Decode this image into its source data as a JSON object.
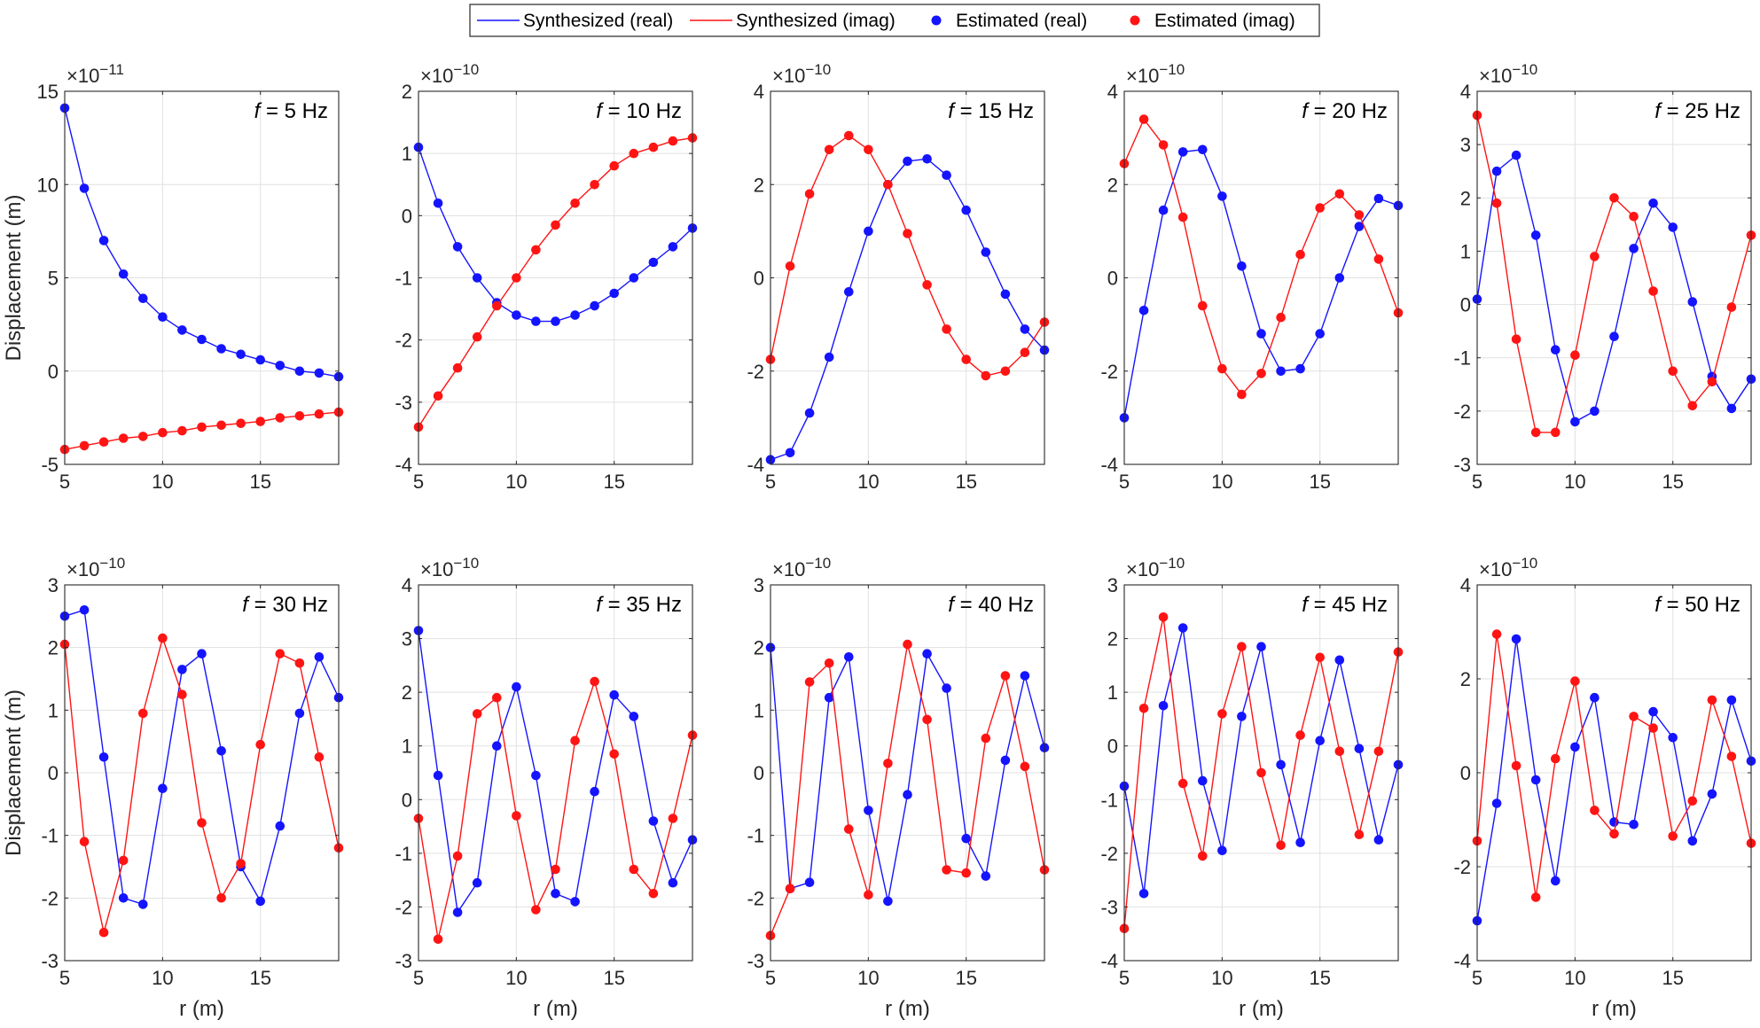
{
  "colors": {
    "real": "#1414ff",
    "imag": "#ff1414",
    "grid": "#e1e1e1",
    "axis": "#262626"
  },
  "legend": {
    "placement": "top-center",
    "entries": [
      {
        "label": "Synthesized (real)",
        "kind": "line",
        "part": "real"
      },
      {
        "label": "Synthesized (imag)",
        "kind": "line",
        "part": "imag"
      },
      {
        "label": "Estimated (real)",
        "kind": "marker",
        "part": "real"
      },
      {
        "label": "Estimated (imag)",
        "kind": "marker",
        "part": "imag"
      }
    ]
  },
  "chart_data": [
    {
      "type": "line",
      "title": "5 Hz",
      "exponent": "-11",
      "xlabel": "",
      "ylabel": "Displacement (m)",
      "xlim": [
        5,
        19
      ],
      "ylim": [
        -5,
        15
      ],
      "xticks": [
        5,
        10,
        15
      ],
      "yticks": [
        -5,
        0,
        5,
        10,
        15
      ],
      "x": [
        5,
        6,
        7,
        8,
        9,
        10,
        11,
        12,
        13,
        14,
        15,
        16,
        17,
        18,
        19
      ],
      "series": [
        {
          "name": "Estimated (real)",
          "values": [
            14.1,
            9.8,
            7.0,
            5.2,
            3.9,
            2.9,
            2.2,
            1.7,
            1.2,
            0.9,
            0.6,
            0.3,
            0.0,
            -0.1,
            -0.3
          ]
        },
        {
          "name": "Estimated (imag)",
          "values": [
            -4.2,
            -4.0,
            -3.8,
            -3.6,
            -3.5,
            -3.3,
            -3.2,
            -3.0,
            -2.9,
            -2.8,
            -2.7,
            -2.5,
            -2.4,
            -2.3,
            -2.2
          ]
        }
      ]
    },
    {
      "type": "line",
      "title": "10 Hz",
      "exponent": "-10",
      "xlabel": "",
      "ylabel": "",
      "xlim": [
        5,
        19
      ],
      "ylim": [
        -4,
        2
      ],
      "xticks": [
        5,
        10,
        15
      ],
      "yticks": [
        -4,
        -3,
        -2,
        -1,
        0,
        1,
        2
      ],
      "x": [
        5,
        6,
        7,
        8,
        9,
        10,
        11,
        12,
        13,
        14,
        15,
        16,
        17,
        18,
        19
      ],
      "series": [
        {
          "name": "Estimated (real)",
          "values": [
            1.1,
            0.2,
            -0.5,
            -1.0,
            -1.4,
            -1.6,
            -1.7,
            -1.7,
            -1.6,
            -1.45,
            -1.25,
            -1.0,
            -0.75,
            -0.5,
            -0.2
          ]
        },
        {
          "name": "Estimated (imag)",
          "values": [
            -3.4,
            -2.9,
            -2.45,
            -1.95,
            -1.45,
            -1.0,
            -0.55,
            -0.15,
            0.2,
            0.5,
            0.8,
            1.0,
            1.1,
            1.2,
            1.25
          ]
        }
      ]
    },
    {
      "type": "line",
      "title": "15 Hz",
      "exponent": "-10",
      "xlabel": "",
      "ylabel": "",
      "xlim": [
        5,
        19
      ],
      "ylim": [
        -4,
        4
      ],
      "xticks": [
        5,
        10,
        15
      ],
      "yticks": [
        -4,
        -2,
        0,
        2,
        4
      ],
      "x": [
        5,
        6,
        7,
        8,
        9,
        10,
        11,
        12,
        13,
        14,
        15,
        16,
        17,
        18,
        19
      ],
      "series": [
        {
          "name": "Estimated (real)",
          "values": [
            -3.9,
            -3.75,
            -2.9,
            -1.7,
            -0.3,
            1.0,
            2.0,
            2.5,
            2.55,
            2.2,
            1.45,
            0.55,
            -0.35,
            -1.1,
            -1.55
          ]
        },
        {
          "name": "Estimated (imag)",
          "values": [
            -1.75,
            0.25,
            1.8,
            2.75,
            3.05,
            2.75,
            2.0,
            0.95,
            -0.15,
            -1.1,
            -1.75,
            -2.1,
            -2.0,
            -1.6,
            -0.95
          ]
        }
      ]
    },
    {
      "type": "line",
      "title": "20 Hz",
      "exponent": "-10",
      "xlabel": "",
      "ylabel": "",
      "xlim": [
        5,
        19
      ],
      "ylim": [
        -4,
        4
      ],
      "xticks": [
        5,
        10,
        15
      ],
      "yticks": [
        -4,
        -2,
        0,
        2,
        4
      ],
      "x": [
        5,
        6,
        7,
        8,
        9,
        10,
        11,
        12,
        13,
        14,
        15,
        16,
        17,
        18,
        19
      ],
      "series": [
        {
          "name": "Estimated (real)",
          "values": [
            -3.0,
            -0.7,
            1.45,
            2.7,
            2.75,
            1.75,
            0.25,
            -1.2,
            -2.0,
            -1.95,
            -1.2,
            0.0,
            1.1,
            1.7,
            1.55
          ]
        },
        {
          "name": "Estimated (imag)",
          "values": [
            2.45,
            3.4,
            2.85,
            1.3,
            -0.6,
            -1.95,
            -2.5,
            -2.05,
            -0.85,
            0.5,
            1.5,
            1.8,
            1.35,
            0.4,
            -0.75
          ]
        }
      ]
    },
    {
      "type": "line",
      "title": "25 Hz",
      "exponent": "-10",
      "xlabel": "",
      "ylabel": "",
      "xlim": [
        5,
        19
      ],
      "ylim": [
        -3,
        4
      ],
      "xticks": [
        5,
        10,
        15
      ],
      "yticks": [
        -3,
        -2,
        -1,
        0,
        1,
        2,
        3,
        4
      ],
      "x": [
        5,
        6,
        7,
        8,
        9,
        10,
        11,
        12,
        13,
        14,
        15,
        16,
        17,
        18,
        19
      ],
      "series": [
        {
          "name": "Estimated (real)",
          "values": [
            0.1,
            2.5,
            2.8,
            1.3,
            -0.85,
            -2.2,
            -2.0,
            -0.6,
            1.05,
            1.9,
            1.45,
            0.05,
            -1.35,
            -1.95,
            -1.4
          ]
        },
        {
          "name": "Estimated (imag)",
          "values": [
            3.55,
            1.9,
            -0.65,
            -2.4,
            -2.4,
            -0.95,
            0.9,
            2.0,
            1.65,
            0.25,
            -1.25,
            -1.9,
            -1.45,
            -0.05,
            1.3
          ]
        }
      ]
    },
    {
      "type": "line",
      "title": "30 Hz",
      "exponent": "-10",
      "xlabel": "r (m)",
      "ylabel": "Displacement (m)",
      "xlim": [
        5,
        19
      ],
      "ylim": [
        -3,
        3
      ],
      "xticks": [
        5,
        10,
        15
      ],
      "yticks": [
        -3,
        -2,
        -1,
        0,
        1,
        2,
        3
      ],
      "x": [
        5,
        6,
        7,
        8,
        9,
        10,
        11,
        12,
        13,
        14,
        15,
        16,
        17,
        18,
        19
      ],
      "series": [
        {
          "name": "Estimated (real)",
          "values": [
            2.5,
            2.6,
            0.25,
            -2.0,
            -2.1,
            -0.25,
            1.65,
            1.9,
            0.35,
            -1.5,
            -2.05,
            -0.85,
            0.95,
            1.85,
            1.2
          ]
        },
        {
          "name": "Estimated (imag)",
          "values": [
            2.05,
            -1.1,
            -2.55,
            -1.4,
            0.95,
            2.15,
            1.25,
            -0.8,
            -2.0,
            -1.45,
            0.45,
            1.9,
            1.75,
            0.25,
            -1.2
          ]
        }
      ]
    },
    {
      "type": "line",
      "title": "35 Hz",
      "exponent": "-10",
      "xlabel": "r (m)",
      "ylabel": "",
      "xlim": [
        5,
        19
      ],
      "ylim": [
        -3,
        4
      ],
      "xticks": [
        5,
        10,
        15
      ],
      "yticks": [
        -3,
        -2,
        -1,
        0,
        1,
        2,
        3,
        4
      ],
      "x": [
        5,
        6,
        7,
        8,
        9,
        10,
        11,
        12,
        13,
        14,
        15,
        16,
        17,
        18,
        19
      ],
      "series": [
        {
          "name": "Estimated (real)",
          "values": [
            3.15,
            0.45,
            -2.1,
            -1.55,
            1.0,
            2.1,
            0.45,
            -1.75,
            -1.9,
            0.15,
            1.95,
            1.55,
            -0.4,
            -1.55,
            -0.75
          ]
        },
        {
          "name": "Estimated (imag)",
          "values": [
            -0.35,
            -2.6,
            -1.05,
            1.6,
            1.9,
            -0.3,
            -2.05,
            -1.3,
            1.1,
            2.2,
            0.85,
            -1.3,
            -1.75,
            -0.35,
            1.2
          ]
        }
      ]
    },
    {
      "type": "line",
      "title": "40 Hz",
      "exponent": "-10",
      "xlabel": "r (m)",
      "ylabel": "",
      "xlim": [
        5,
        19
      ],
      "ylim": [
        -3,
        3
      ],
      "xticks": [
        5,
        10,
        15
      ],
      "yticks": [
        -3,
        -2,
        -1,
        0,
        1,
        2,
        3
      ],
      "x": [
        5,
        6,
        7,
        8,
        9,
        10,
        11,
        12,
        13,
        14,
        15,
        16,
        17,
        18,
        19
      ],
      "series": [
        {
          "name": "Estimated (real)",
          "values": [
            2.0,
            -1.85,
            -1.75,
            1.2,
            1.85,
            -0.6,
            -2.05,
            -0.35,
            1.9,
            1.35,
            -1.05,
            -1.65,
            0.2,
            1.55,
            0.4
          ]
        },
        {
          "name": "Estimated (imag)",
          "values": [
            -2.6,
            -1.85,
            1.45,
            1.75,
            -0.9,
            -1.95,
            0.15,
            2.05,
            0.85,
            -1.55,
            -1.6,
            0.55,
            1.55,
            0.1,
            -1.55
          ]
        }
      ]
    },
    {
      "type": "line",
      "title": "45 Hz",
      "exponent": "-10",
      "xlabel": "r (m)",
      "ylabel": "",
      "xlim": [
        5,
        19
      ],
      "ylim": [
        -4,
        3
      ],
      "xticks": [
        5,
        10,
        15
      ],
      "yticks": [
        -4,
        -3,
        -2,
        -1,
        0,
        1,
        2,
        3
      ],
      "x": [
        5,
        6,
        7,
        8,
        9,
        10,
        11,
        12,
        13,
        14,
        15,
        16,
        17,
        18,
        19
      ],
      "series": [
        {
          "name": "Estimated (real)",
          "values": [
            -0.75,
            -2.75,
            0.75,
            2.2,
            -0.65,
            -1.95,
            0.55,
            1.85,
            -0.35,
            -1.8,
            0.1,
            1.6,
            -0.05,
            -1.75,
            -0.35
          ]
        },
        {
          "name": "Estimated (imag)",
          "values": [
            -3.4,
            0.7,
            2.4,
            -0.7,
            -2.05,
            0.6,
            1.85,
            -0.5,
            -1.85,
            0.2,
            1.65,
            -0.1,
            -1.65,
            -0.1,
            1.75
          ]
        }
      ]
    },
    {
      "type": "line",
      "title": "50 Hz",
      "exponent": "-10",
      "xlabel": "r (m)",
      "ylabel": "",
      "xlim": [
        5,
        19
      ],
      "ylim": [
        -4,
        4
      ],
      "xticks": [
        5,
        10,
        15
      ],
      "yticks": [
        -4,
        -2,
        0,
        2,
        4
      ],
      "x": [
        5,
        6,
        7,
        8,
        9,
        10,
        11,
        12,
        13,
        14,
        15,
        16,
        17,
        18,
        19
      ],
      "series": [
        {
          "name": "Estimated (real)",
          "values": [
            -3.15,
            -0.65,
            2.85,
            -0.15,
            -2.3,
            0.55,
            1.6,
            -1.05,
            -1.1,
            1.3,
            0.75,
            -1.45,
            -0.45,
            1.55,
            0.25
          ]
        },
        {
          "name": "Estimated (imag)",
          "values": [
            -1.45,
            2.95,
            0.15,
            -2.65,
            0.3,
            1.95,
            -0.8,
            -1.3,
            1.2,
            0.95,
            -1.35,
            -0.6,
            1.55,
            0.35,
            -1.5
          ]
        }
      ]
    }
  ]
}
